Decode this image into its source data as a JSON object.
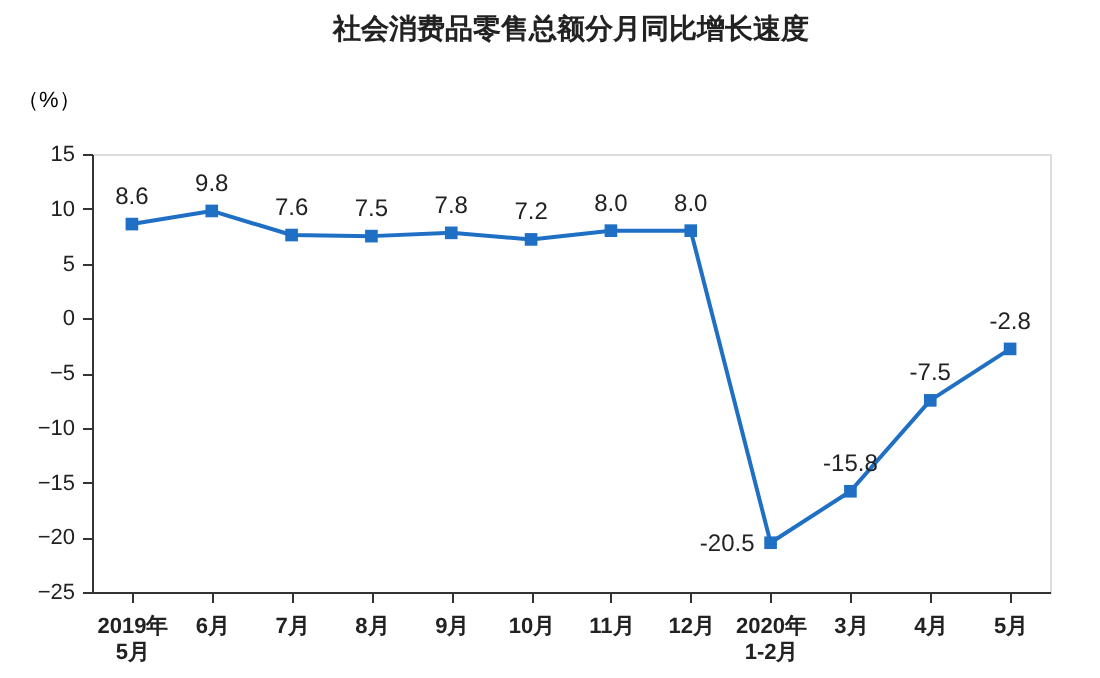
{
  "chart_data": {
    "type": "line",
    "title": "社会消费品零售总额分月同比增长速度",
    "ylabel": "（%）",
    "categories": [
      "2019年\n5月",
      "6月",
      "7月",
      "8月",
      "9月",
      "10月",
      "11月",
      "12月",
      "2020年\n1-2月",
      "3月",
      "4月",
      "5月"
    ],
    "series": [
      {
        "color": "#1f6fc5",
        "values": [
          8.6,
          9.8,
          7.6,
          7.5,
          7.8,
          7.2,
          8.0,
          8.0,
          -20.5,
          -15.8,
          -7.5,
          -2.8
        ],
        "value_labels": [
          "8.6",
          "9.8",
          "7.6",
          "7.5",
          "7.8",
          "7.2",
          "8.0",
          "8.0",
          "-20.5",
          "-15.8",
          "-7.5",
          "-2.8"
        ]
      }
    ],
    "ylim": [
      -25,
      15
    ],
    "yticks": [
      -25,
      -20,
      -15,
      -10,
      -5,
      0,
      5,
      10,
      15
    ],
    "marker": "square",
    "line_style": "solid",
    "grid": false
  }
}
